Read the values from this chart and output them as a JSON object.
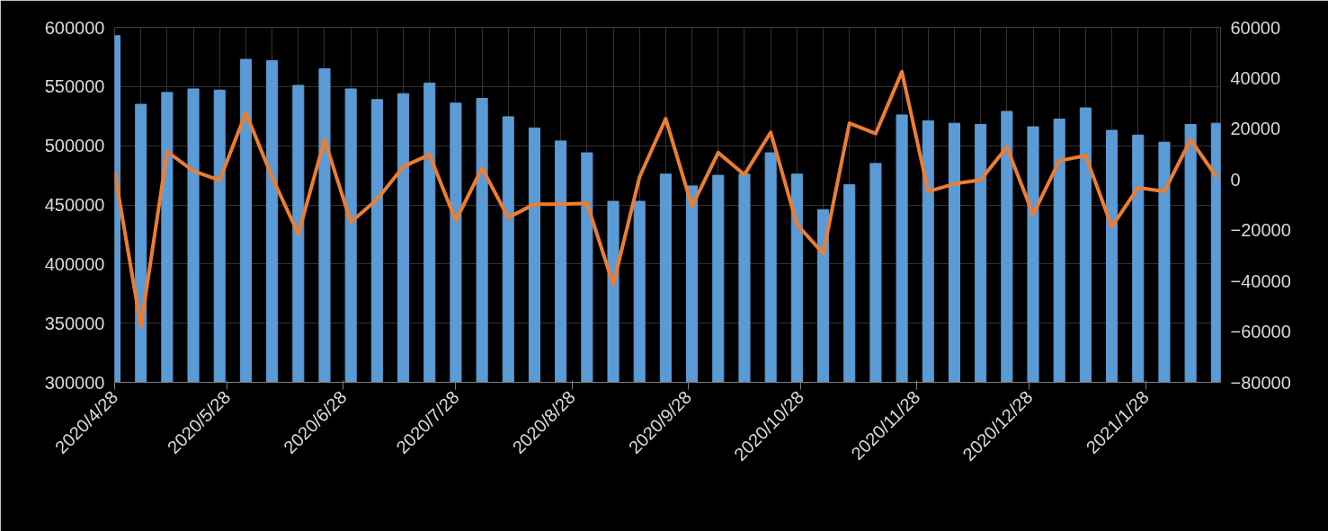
{
  "chart_data": {
    "type": "bar",
    "x": [
      "2020-04-28",
      "2020-05-05",
      "2020-05-12",
      "2020-05-19",
      "2020-05-26",
      "2020-06-02",
      "2020-06-09",
      "2020-06-16",
      "2020-06-23",
      "2020-06-30",
      "2020-07-07",
      "2020-07-14",
      "2020-07-21",
      "2020-07-28",
      "2020-08-04",
      "2020-08-11",
      "2020-08-18",
      "2020-08-25",
      "2020-09-01",
      "2020-09-08",
      "2020-09-15",
      "2020-09-22",
      "2020-09-29",
      "2020-10-06",
      "2020-10-13",
      "2020-10-20",
      "2020-10-27",
      "2020-11-03",
      "2020-11-10",
      "2020-11-17",
      "2020-11-24",
      "2020-12-01",
      "2020-12-08",
      "2020-12-15",
      "2020-12-22",
      "2020-12-29",
      "2021-01-05",
      "2021-01-12",
      "2021-01-19",
      "2021-01-26",
      "2021-02-02",
      "2021-02-09",
      "2021-02-16"
    ],
    "series": [
      {
        "color": "#5b9bd5",
        "values": [
          593000,
          535000,
          545000,
          548000,
          547000,
          573000,
          572000,
          551000,
          565000,
          548000,
          539000,
          544000,
          553000,
          536000,
          540000,
          524500,
          515000,
          504000,
          494000,
          453000,
          453000,
          476000,
          466000,
          475000,
          476000,
          494000,
          476000,
          446000,
          467000,
          485000,
          526000,
          521000,
          519000,
          518000,
          529000,
          516000,
          522500,
          532000,
          513000,
          509000,
          503000,
          518000,
          519000
        ]
      },
      {
        "type": "line",
        "axis": "y2",
        "color": "#ed7d31",
        "values": [
          3000,
          -58000,
          11000,
          3300,
          -300,
          26300,
          900,
          -21500,
          15700,
          -16800,
          -7900,
          5100,
          9800,
          -16200,
          4500,
          -15000,
          -9700,
          -9700,
          -9400,
          -41400,
          900,
          24000,
          -10600,
          10600,
          1900,
          18600,
          -17700,
          -29200,
          22200,
          18100,
          42500,
          -4700,
          -1700,
          -200,
          12800,
          -13800,
          7400,
          9400,
          -18600,
          -3200,
          -4700,
          15700,
          900
        ]
      }
    ],
    "xlim": [
      "2020-04-28",
      "2021-02-17"
    ],
    "xticks": [
      {
        "value": "2020-04-28",
        "label": "2020/4/28"
      },
      {
        "value": "2020-05-28",
        "label": "2020/5/28"
      },
      {
        "value": "2020-06-28",
        "label": "2020/6/28"
      },
      {
        "value": "2020-07-28",
        "label": "2020/7/28"
      },
      {
        "value": "2020-08-28",
        "label": "2020/8/28"
      },
      {
        "value": "2020-09-28",
        "label": "2020/9/28"
      },
      {
        "value": "2020-10-28",
        "label": "2020/10/28"
      },
      {
        "value": "2020-11-28",
        "label": "2020/11/28"
      },
      {
        "value": "2020-12-28",
        "label": "2020/12/28"
      },
      {
        "value": "2021-01-28",
        "label": "2021/1/28"
      }
    ],
    "ylim": [
      300000,
      600000
    ],
    "yticks": [
      300000,
      350000,
      400000,
      450000,
      500000,
      550000,
      600000
    ],
    "y2lim": [
      -80000,
      60000
    ],
    "y2ticks": [
      -80000,
      -60000,
      -40000,
      -20000,
      0,
      20000,
      40000,
      60000
    ],
    "grid": true
  }
}
